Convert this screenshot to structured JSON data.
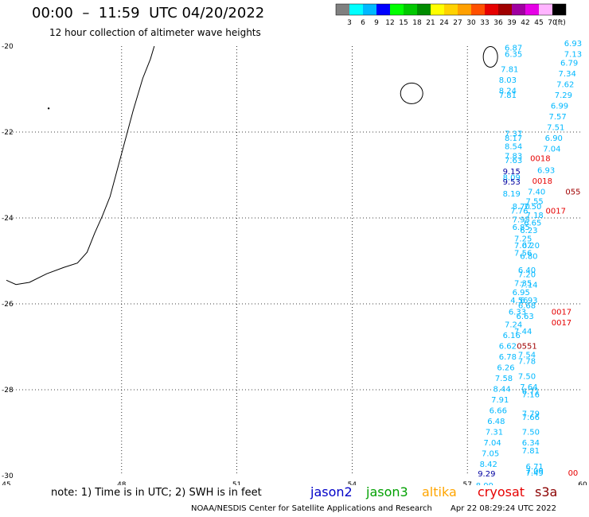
{
  "header": {
    "title": "00:00  –  11:59  UTC 04/20/2022",
    "subtitle": "12 hour collection of altimeter wave heights"
  },
  "legend": {
    "colors": [
      "#808080",
      "#00ffff",
      "#00b8ff",
      "#0000ff",
      "#00ff00",
      "#00c800",
      "#008c00",
      "#ffff00",
      "#ffd200",
      "#ffa000",
      "#ff5000",
      "#e60000",
      "#a00000",
      "#a000a0",
      "#e600e6",
      "#ffb4ff",
      "#000000"
    ],
    "labels": [
      "3",
      "6",
      "9",
      "12",
      "15",
      "18",
      "21",
      "24",
      "27",
      "30",
      "33",
      "36",
      "39",
      "42",
      "45",
      "70"
    ],
    "unit": "(ft)"
  },
  "map": {
    "x_ticks": [
      "45",
      "48",
      "51",
      "54",
      "57",
      "60"
    ],
    "y_ticks": [
      "-20",
      "-22",
      "-24",
      "-26",
      "-28",
      "-30"
    ],
    "xlim": [
      45,
      60
    ],
    "ylim": [
      -30,
      -20
    ],
    "grid": "dotted",
    "observations": [
      {
        "lon": 58.2,
        "lat": -20.1,
        "text": "6.87",
        "sat": "jason3"
      },
      {
        "lon": 58.2,
        "lat": -20.25,
        "text": "6.35",
        "sat": "jason3"
      },
      {
        "lon": 58.1,
        "lat": -20.6,
        "text": "7.81",
        "sat": "jason3"
      },
      {
        "lon": 58.05,
        "lat": -20.85,
        "text": "8.03",
        "sat": "jason3"
      },
      {
        "lon": 58.05,
        "lat": -21.1,
        "text": "8.24",
        "sat": "jason3"
      },
      {
        "lon": 58.05,
        "lat": -21.2,
        "text": "7.81",
        "sat": "jason3"
      },
      {
        "lon": 58.2,
        "lat": -22.1,
        "text": "7.37",
        "sat": "jason3"
      },
      {
        "lon": 58.2,
        "lat": -22.2,
        "text": "8.17",
        "sat": "jason3"
      },
      {
        "lon": 58.2,
        "lat": -22.4,
        "text": "8.54",
        "sat": "jason3"
      },
      {
        "lon": 58.2,
        "lat": -22.62,
        "text": "7.83",
        "sat": "jason3"
      },
      {
        "lon": 58.2,
        "lat": -22.72,
        "text": "7.63",
        "sat": "jason3"
      },
      {
        "lon": 58.15,
        "lat": -22.98,
        "text": "9.15",
        "sat": "jason2"
      },
      {
        "lon": 58.15,
        "lat": -23.12,
        "text": "8.09",
        "sat": "jason3"
      },
      {
        "lon": 58.15,
        "lat": -23.22,
        "text": "9.53",
        "sat": "jason2"
      },
      {
        "lon": 58.15,
        "lat": -23.5,
        "text": "8.19",
        "sat": "jason3"
      },
      {
        "lon": 58.4,
        "lat": -23.8,
        "text": "8.70",
        "sat": "jason3"
      },
      {
        "lon": 58.7,
        "lat": -23.8,
        "text": "7.50",
        "sat": "jason3"
      },
      {
        "lon": 58.35,
        "lat": -23.9,
        "text": "7.76",
        "sat": "jason3"
      },
      {
        "lon": 58.75,
        "lat": -24.0,
        "text": "7.18",
        "sat": "jason3"
      },
      {
        "lon": 58.4,
        "lat": -24.1,
        "text": "7.95",
        "sat": "jason3"
      },
      {
        "lon": 58.7,
        "lat": -24.18,
        "text": "6.65",
        "sat": "jason3"
      },
      {
        "lon": 58.4,
        "lat": -24.28,
        "text": "6.85",
        "sat": "jason3"
      },
      {
        "lon": 58.6,
        "lat": -24.35,
        "text": "6.23",
        "sat": "jason3"
      },
      {
        "lon": 58.45,
        "lat": -24.55,
        "text": "7.25",
        "sat": "jason3"
      },
      {
        "lon": 58.45,
        "lat": -24.7,
        "text": "7.07",
        "sat": "jason3"
      },
      {
        "lon": 58.65,
        "lat": -24.7,
        "text": "6.20",
        "sat": "jason3"
      },
      {
        "lon": 58.45,
        "lat": -24.88,
        "text": "7.56",
        "sat": "jason3"
      },
      {
        "lon": 58.6,
        "lat": -24.95,
        "text": "6.80",
        "sat": "jason3"
      },
      {
        "lon": 58.55,
        "lat": -25.28,
        "text": "6.40",
        "sat": "jason3"
      },
      {
        "lon": 58.55,
        "lat": -25.38,
        "text": "7.20",
        "sat": "jason3"
      },
      {
        "lon": 58.45,
        "lat": -25.58,
        "text": "7.35",
        "sat": "jason3"
      },
      {
        "lon": 58.6,
        "lat": -25.62,
        "text": "7.14",
        "sat": "jason3"
      },
      {
        "lon": 58.4,
        "lat": -25.8,
        "text": "6.95",
        "sat": "jason3"
      },
      {
        "lon": 58.35,
        "lat": -25.98,
        "text": "4.56",
        "sat": "jason3"
      },
      {
        "lon": 58.6,
        "lat": -25.98,
        "text": "6.93",
        "sat": "jason3"
      },
      {
        "lon": 58.55,
        "lat": -26.1,
        "text": "6.68",
        "sat": "jason3"
      },
      {
        "lon": 58.3,
        "lat": -26.25,
        "text": "6.33",
        "sat": "jason3"
      },
      {
        "lon": 58.5,
        "lat": -26.35,
        "text": "6.63",
        "sat": "jason3"
      },
      {
        "lon": 58.2,
        "lat": -26.55,
        "text": "7.24",
        "sat": "jason3"
      },
      {
        "lon": 58.45,
        "lat": -26.7,
        "text": "7.44",
        "sat": "jason3"
      },
      {
        "lon": 58.15,
        "lat": -26.8,
        "text": "6.16",
        "sat": "jason3"
      },
      {
        "lon": 58.05,
        "lat": -27.05,
        "text": "6.62",
        "sat": "jason3"
      },
      {
        "lon": 58.55,
        "lat": -27.25,
        "text": "7.54",
        "sat": "jason3"
      },
      {
        "lon": 58.05,
        "lat": -27.3,
        "text": "6.78",
        "sat": "jason3"
      },
      {
        "lon": 58.55,
        "lat": -27.4,
        "text": "7.78",
        "sat": "jason3"
      },
      {
        "lon": 58.0,
        "lat": -27.55,
        "text": "6.26",
        "sat": "jason3"
      },
      {
        "lon": 58.55,
        "lat": -27.75,
        "text": "7.50",
        "sat": "jason3"
      },
      {
        "lon": 57.95,
        "lat": -27.8,
        "text": "7.58",
        "sat": "jason3"
      },
      {
        "lon": 58.6,
        "lat": -28.0,
        "text": "7.64",
        "sat": "jason3"
      },
      {
        "lon": 57.9,
        "lat": -28.05,
        "text": "8.44",
        "sat": "jason3"
      },
      {
        "lon": 58.65,
        "lat": -28.1,
        "text": "6.71",
        "sat": "jason3"
      },
      {
        "lon": 58.65,
        "lat": -28.18,
        "text": "7.16",
        "sat": "jason3"
      },
      {
        "lon": 57.85,
        "lat": -28.3,
        "text": "7.91",
        "sat": "jason3"
      },
      {
        "lon": 57.8,
        "lat": -28.55,
        "text": "6.66",
        "sat": "jason3"
      },
      {
        "lon": 58.65,
        "lat": -28.62,
        "text": "7.79",
        "sat": "jason3"
      },
      {
        "lon": 58.65,
        "lat": -28.7,
        "text": "7.66",
        "sat": "jason3"
      },
      {
        "lon": 57.75,
        "lat": -28.8,
        "text": "6.48",
        "sat": "jason3"
      },
      {
        "lon": 57.7,
        "lat": -29.05,
        "text": "7.31",
        "sat": "jason3"
      },
      {
        "lon": 58.65,
        "lat": -29.05,
        "text": "7.50",
        "sat": "jason3"
      },
      {
        "lon": 57.65,
        "lat": -29.3,
        "text": "7.04",
        "sat": "jason3"
      },
      {
        "lon": 58.65,
        "lat": -29.3,
        "text": "6.34",
        "sat": "jason3"
      },
      {
        "lon": 58.65,
        "lat": -29.48,
        "text": "7.81",
        "sat": "jason3"
      },
      {
        "lon": 57.6,
        "lat": -29.55,
        "text": "7.05",
        "sat": "jason3"
      },
      {
        "lon": 57.55,
        "lat": -29.8,
        "text": "8.42",
        "sat": "jason3"
      },
      {
        "lon": 58.75,
        "lat": -29.85,
        "text": "6.71",
        "sat": "jason3"
      },
      {
        "lon": 58.75,
        "lat": -29.95,
        "text": "7.09",
        "sat": "jason3"
      },
      {
        "lon": 58.75,
        "lat": -30.0,
        "text": "7.49",
        "sat": "jason3"
      },
      {
        "lon": 57.5,
        "lat": -30.02,
        "text": "9.29",
        "sat": "jason2"
      },
      {
        "lon": 57.45,
        "lat": -30.3,
        "text": "8.99",
        "sat": "jason3"
      },
      {
        "lon": 59.75,
        "lat": -20.0,
        "text": "6.93",
        "sat": "jason3"
      },
      {
        "lon": 59.75,
        "lat": -20.25,
        "text": "7.13",
        "sat": "jason3"
      },
      {
        "lon": 59.65,
        "lat": -20.45,
        "text": "6.79",
        "sat": "jason3"
      },
      {
        "lon": 59.6,
        "lat": -20.7,
        "text": "7.34",
        "sat": "jason3"
      },
      {
        "lon": 59.55,
        "lat": -20.95,
        "text": "7.62",
        "sat": "jason3"
      },
      {
        "lon": 59.5,
        "lat": -21.2,
        "text": "7.29",
        "sat": "jason3"
      },
      {
        "lon": 59.4,
        "lat": -21.45,
        "text": "6.99",
        "sat": "jason3"
      },
      {
        "lon": 59.35,
        "lat": -21.7,
        "text": "7.57",
        "sat": "jason3"
      },
      {
        "lon": 59.3,
        "lat": -21.95,
        "text": "7.51",
        "sat": "jason3"
      },
      {
        "lon": 59.25,
        "lat": -22.2,
        "text": "6.90",
        "sat": "jason3"
      },
      {
        "lon": 59.2,
        "lat": -22.45,
        "text": "7.04",
        "sat": "jason3"
      },
      {
        "lon": 59.05,
        "lat": -22.95,
        "text": "6.93",
        "sat": "jason3"
      },
      {
        "lon": 58.8,
        "lat": -23.45,
        "text": "7.40",
        "sat": "jason3"
      },
      {
        "lon": 58.75,
        "lat": -23.68,
        "text": "7.55",
        "sat": "jason3"
      },
      {
        "lon": 58.9,
        "lat": -22.68,
        "text": "0018",
        "sat": "cryosat"
      },
      {
        "lon": 58.95,
        "lat": -23.2,
        "text": "0018",
        "sat": "cryosat"
      },
      {
        "lon": 59.3,
        "lat": -23.9,
        "text": "0017",
        "sat": "cryosat"
      },
      {
        "lon": 59.75,
        "lat": -23.45,
        "text": "055",
        "sat": "s3a"
      },
      {
        "lon": 59.45,
        "lat": -26.25,
        "text": "0017",
        "sat": "cryosat"
      },
      {
        "lon": 59.45,
        "lat": -26.5,
        "text": "0017",
        "sat": "cryosat"
      },
      {
        "lon": 58.55,
        "lat": -27.05,
        "text": "0551",
        "sat": "s3a"
      },
      {
        "lon": 59.75,
        "lat": -30.0,
        "text": "00",
        "sat": "cryosat"
      }
    ]
  },
  "note": "note: 1) Time is in UTC; 2) SWH is in feet",
  "satellites": [
    {
      "name": "jason2",
      "color": "#0000c8"
    },
    {
      "name": "jason3",
      "color": "#00a000"
    },
    {
      "name": "altika",
      "color": "#ffa500"
    },
    {
      "name": "cryosat",
      "color": "#e60000"
    },
    {
      "name": "s3a",
      "color": "#8b0000"
    }
  ],
  "footer": {
    "credit": "NOAA/NESDIS Center for Satellite Applications and Research",
    "timestamp": "Apr 22 08:29:24 UTC 2022"
  }
}
